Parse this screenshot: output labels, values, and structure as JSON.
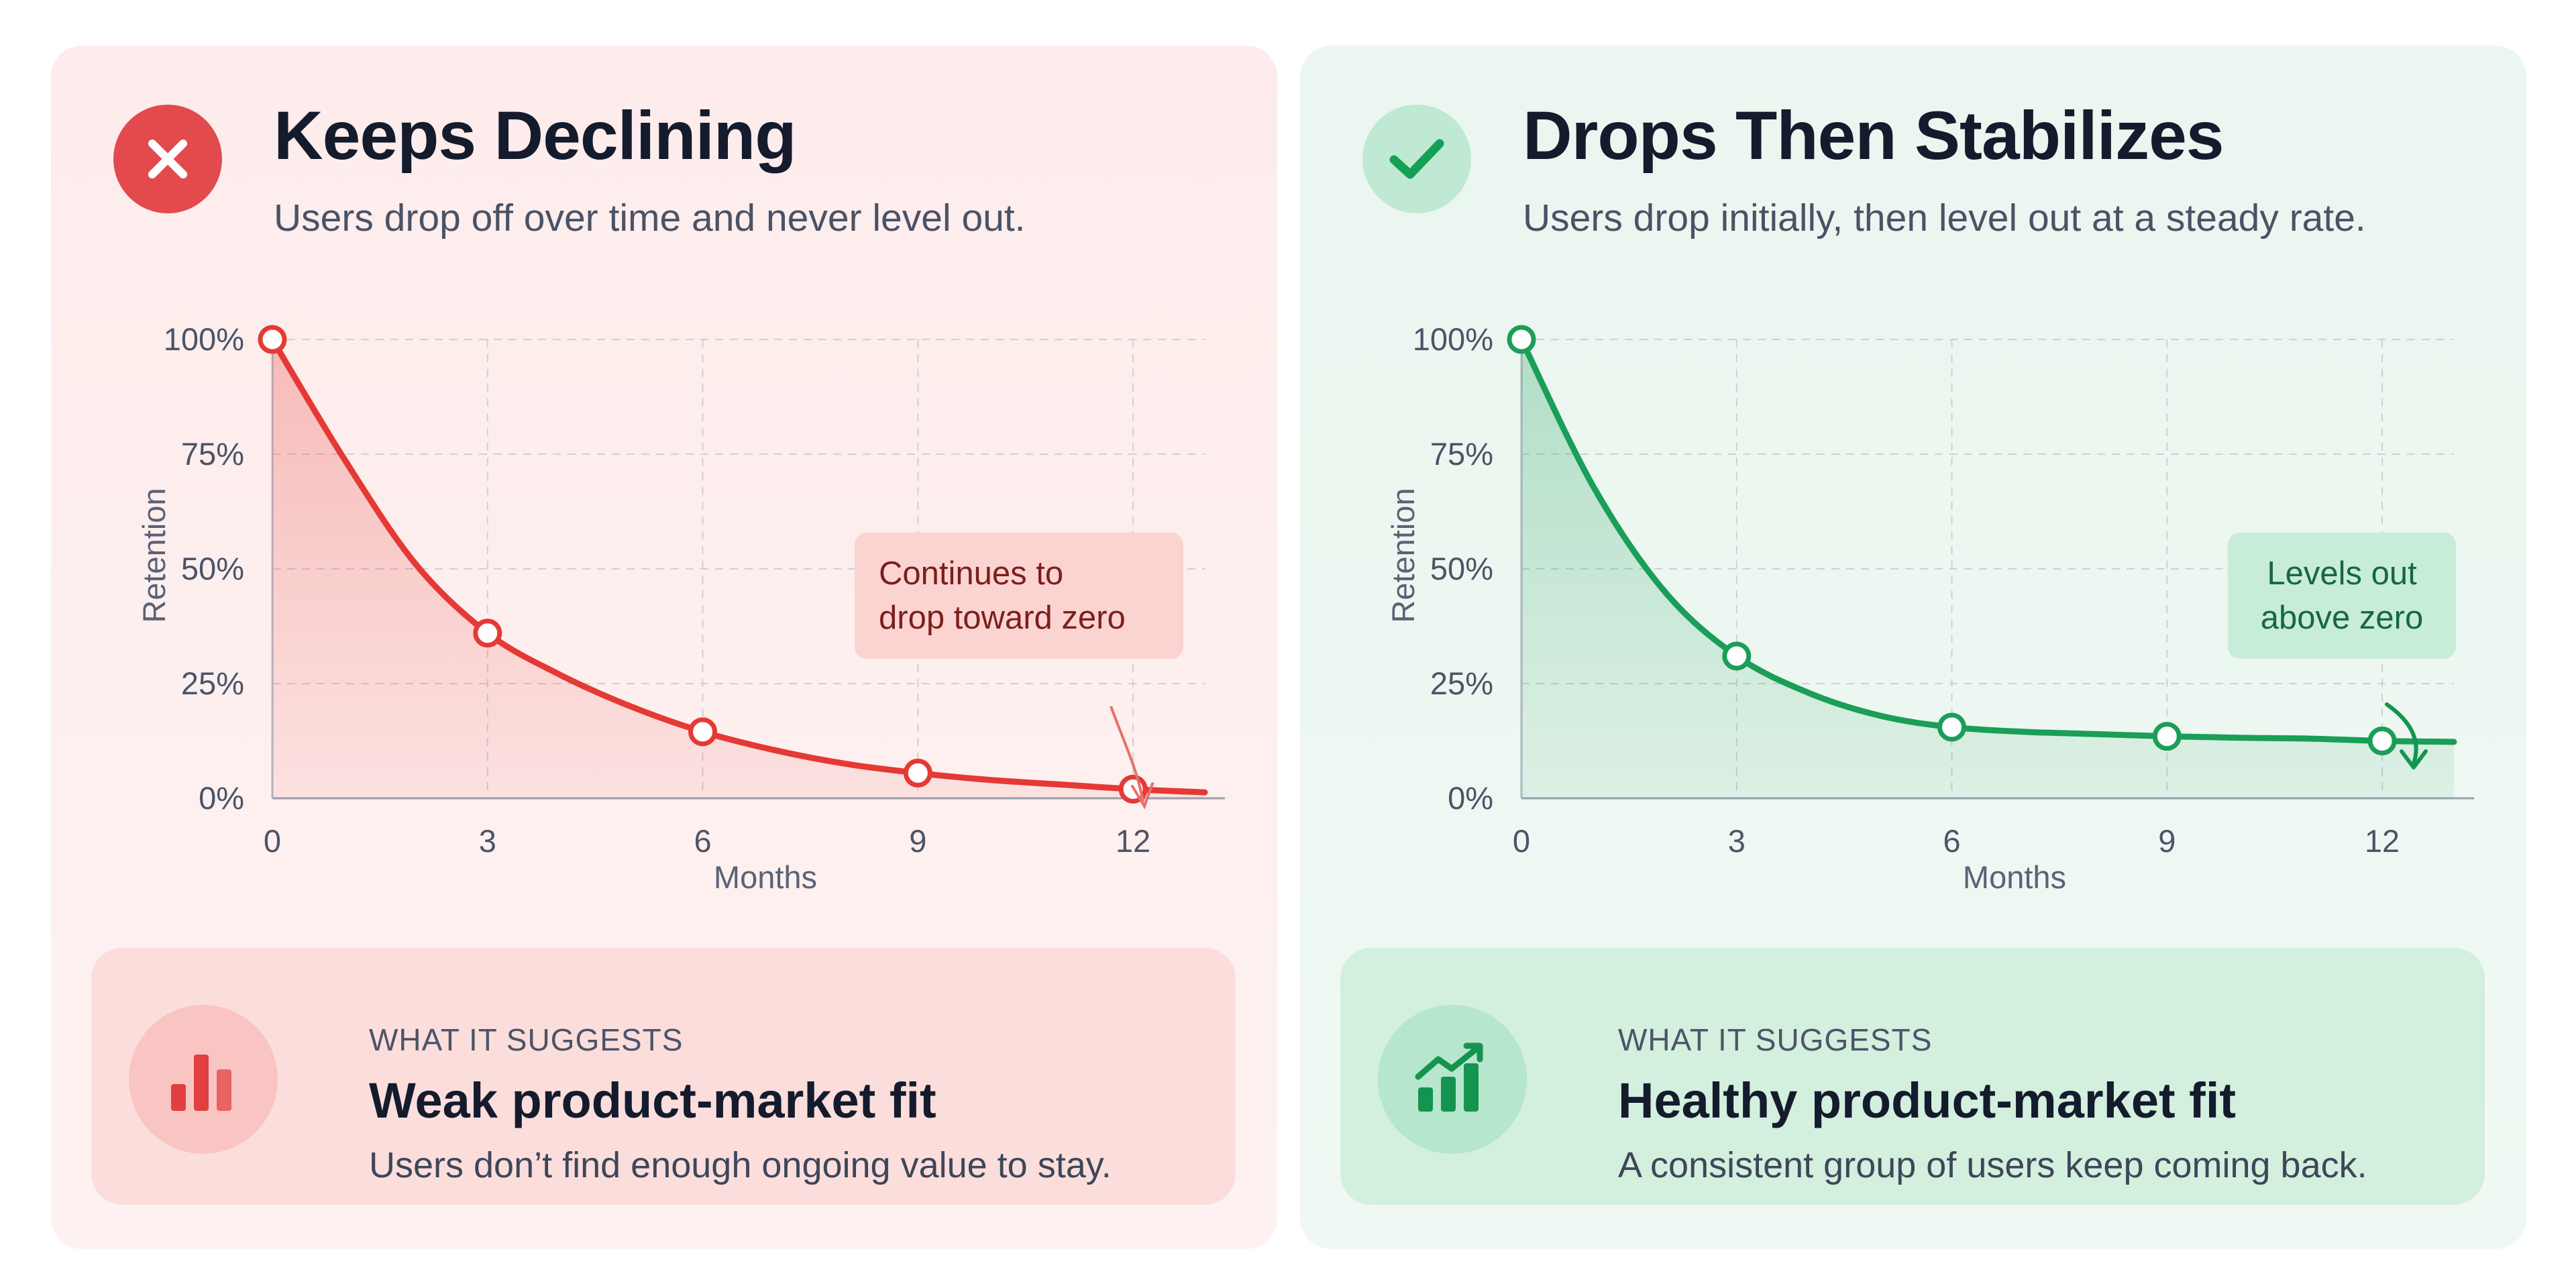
{
  "panels": [
    {
      "title": "Keeps Declining",
      "subtitle": "Users drop off over time and never level out.",
      "status_icon": "x-mark-icon",
      "accent": "#e53935",
      "callout": "Continues to\ndrop toward zero",
      "card": {
        "kicker": "WHAT IT SUGGESTS",
        "heading": "Weak product-market fit",
        "text": "Users don’t find enough ongoing value to stay.",
        "icon": "bar-chart-icon"
      }
    },
    {
      "title": "Drops Then Stabilizes",
      "subtitle": "Users drop initially, then level out at a steady rate.",
      "status_icon": "checkmark-icon",
      "accent": "#1a9e58",
      "callout": "Levels out\nabove zero",
      "card": {
        "kicker": "WHAT IT SUGGESTS",
        "heading": "Healthy product-market fit",
        "text": "A consistent group of users keep coming back.",
        "icon": "trending-up-chart-icon"
      }
    }
  ],
  "chart_data": [
    {
      "type": "line",
      "title": "Keeps Declining",
      "xlabel": "Months",
      "ylabel": "Retention",
      "x_ticks": [
        0,
        3,
        6,
        9,
        12
      ],
      "y_ticks": [
        "0%",
        "25%",
        "50%",
        "75%",
        "100%"
      ],
      "xlim": [
        0,
        13
      ],
      "ylim": [
        0,
        100
      ],
      "grid": true,
      "series": [
        {
          "points": [
            {
              "x": 0,
              "y": 100
            },
            {
              "x": 1,
              "y": 74
            },
            {
              "x": 2,
              "y": 51
            },
            {
              "x": 3,
              "y": 36
            },
            {
              "x": 4,
              "y": 27
            },
            {
              "x": 5,
              "y": 20
            },
            {
              "x": 6,
              "y": 14.5
            },
            {
              "x": 7,
              "y": 10.5
            },
            {
              "x": 8,
              "y": 7.5
            },
            {
              "x": 9,
              "y": 5.5
            },
            {
              "x": 10,
              "y": 4
            },
            {
              "x": 11,
              "y": 3
            },
            {
              "x": 12,
              "y": 2
            },
            {
              "x": 13,
              "y": 1.3
            }
          ],
          "markers": [
            {
              "x": 0,
              "y": 100
            },
            {
              "x": 3,
              "y": 36
            },
            {
              "x": 6,
              "y": 14.5
            },
            {
              "x": 9,
              "y": 5.5
            },
            {
              "x": 12,
              "y": 2
            }
          ]
        }
      ]
    },
    {
      "type": "line",
      "title": "Drops Then Stabilizes",
      "xlabel": "Months",
      "ylabel": "Retention",
      "x_ticks": [
        0,
        3,
        6,
        9,
        12
      ],
      "y_ticks": [
        "0%",
        "25%",
        "50%",
        "75%",
        "100%"
      ],
      "xlim": [
        0,
        13
      ],
      "ylim": [
        0,
        100
      ],
      "grid": true,
      "series": [
        {
          "points": [
            {
              "x": 0,
              "y": 100
            },
            {
              "x": 1,
              "y": 68
            },
            {
              "x": 2,
              "y": 45
            },
            {
              "x": 3,
              "y": 31
            },
            {
              "x": 4,
              "y": 23
            },
            {
              "x": 5,
              "y": 18
            },
            {
              "x": 6,
              "y": 15.5
            },
            {
              "x": 7,
              "y": 14.5
            },
            {
              "x": 8,
              "y": 14
            },
            {
              "x": 9,
              "y": 13.5
            },
            {
              "x": 10,
              "y": 13.2
            },
            {
              "x": 11,
              "y": 13
            },
            {
              "x": 12,
              "y": 12.5
            },
            {
              "x": 13,
              "y": 12.3
            }
          ],
          "markers": [
            {
              "x": 0,
              "y": 100
            },
            {
              "x": 3,
              "y": 31
            },
            {
              "x": 6,
              "y": 15.5
            },
            {
              "x": 9,
              "y": 13.5
            },
            {
              "x": 12,
              "y": 12.5
            }
          ]
        }
      ]
    }
  ]
}
